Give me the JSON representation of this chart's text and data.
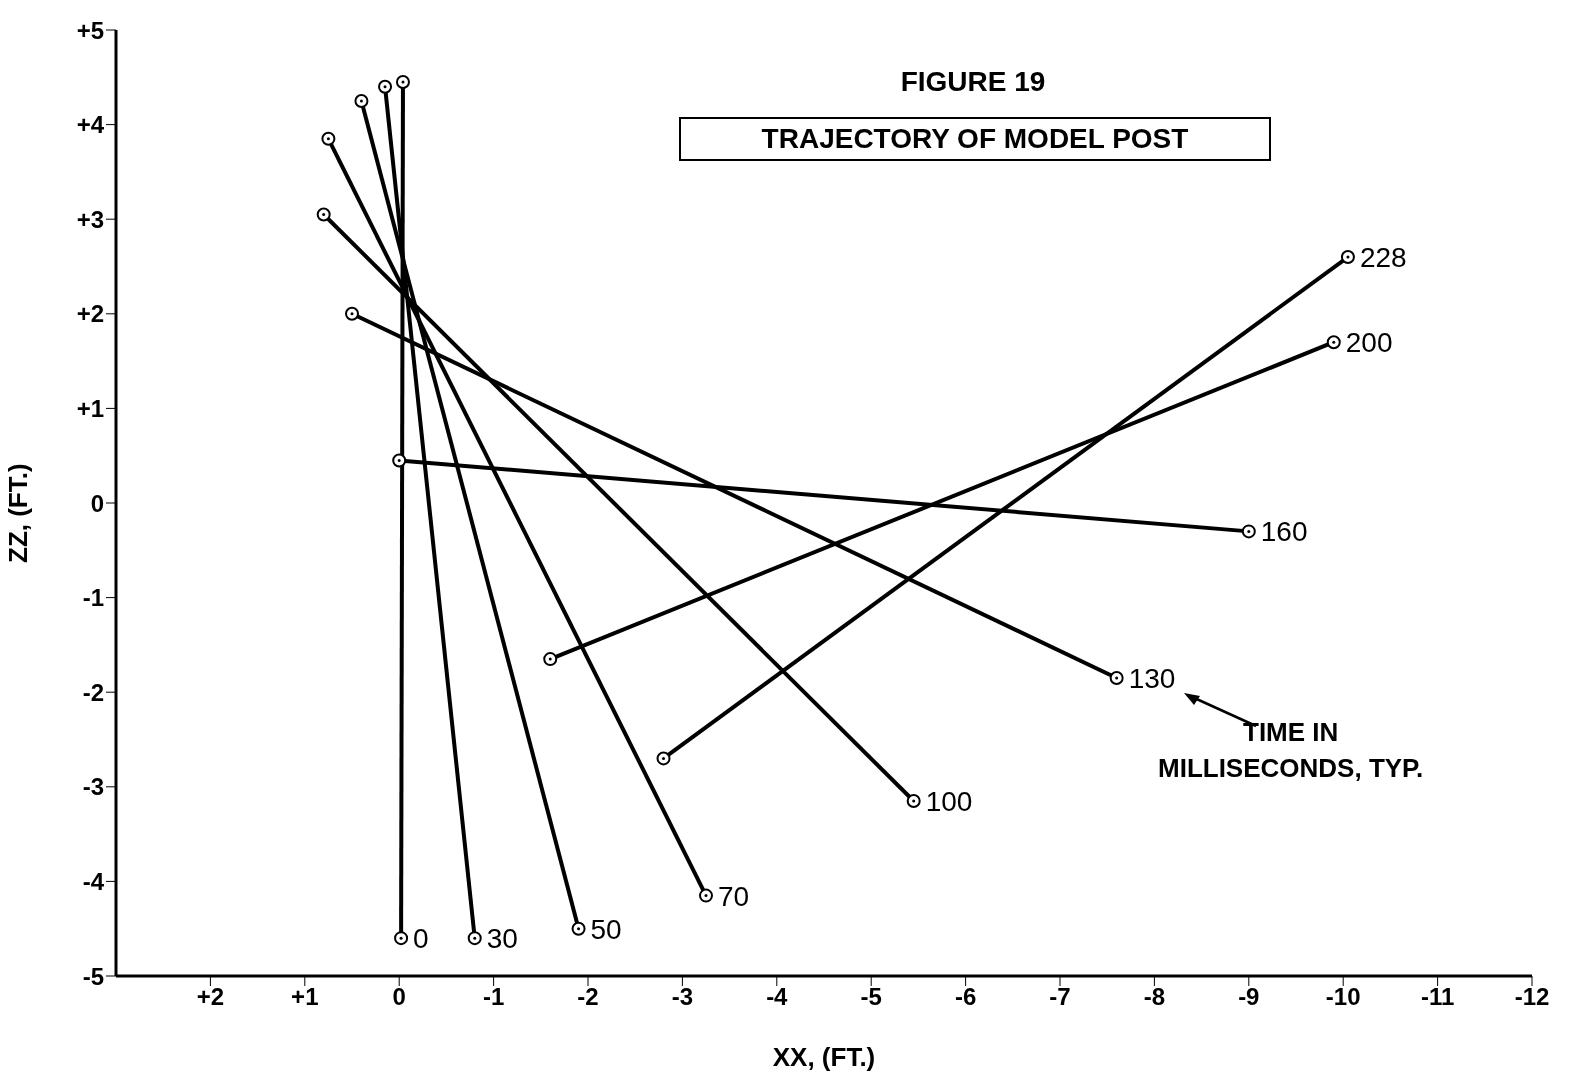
{
  "chart_data": {
    "type": "line",
    "title": "FIGURE 19",
    "subtitle": "TRAJECTORY OF MODEL POST",
    "xlabel": "XX,  (FT.)",
    "ylabel": "ZZ,  (FT.)",
    "xlim": [
      3,
      -12
    ],
    "xticks": [
      {
        "value": 2,
        "label": "+2"
      },
      {
        "value": 1,
        "label": "+1"
      },
      0,
      -1,
      -2,
      -3,
      -4,
      -5,
      -6,
      -7,
      -8,
      -9,
      -10,
      -11,
      -12
    ],
    "ylim": [
      -5,
      5
    ],
    "yticks": [
      -5,
      -4,
      -3,
      -2,
      -1,
      0,
      {
        "value": 1,
        "label": "+1"
      },
      {
        "value": 2,
        "label": "+2"
      },
      {
        "value": 3,
        "label": "+3"
      },
      {
        "value": 4,
        "label": "+4"
      },
      {
        "value": 5,
        "label": "+5"
      }
    ],
    "grid": false,
    "marker": "circle",
    "line_style": "solid",
    "annotations": [
      "TIME IN\nMILLISECONDS, TYP."
    ],
    "series": [
      {
        "name": "0",
        "color": "#000000",
        "x": [
          -0.02,
          -0.04
        ],
        "values": [
          -4.6,
          4.45
        ]
      },
      {
        "name": "30",
        "color": "#000000",
        "x": [
          -0.8,
          0.15
        ],
        "values": [
          -4.6,
          4.4
        ]
      },
      {
        "name": "50",
        "color": "#000000",
        "x": [
          -1.9,
          0.4
        ],
        "values": [
          -4.5,
          4.25
        ]
      },
      {
        "name": "70",
        "color": "#000000",
        "x": [
          -3.25,
          0.75
        ],
        "values": [
          -4.15,
          3.85
        ]
      },
      {
        "name": "100",
        "color": "#000000",
        "x": [
          -5.45,
          0.8
        ],
        "values": [
          -3.15,
          3.05
        ]
      },
      {
        "name": "130",
        "color": "#000000",
        "x": [
          -7.6,
          0.5
        ],
        "values": [
          -1.85,
          2
        ]
      },
      {
        "name": "160",
        "color": "#000000",
        "x": [
          -9,
          0
        ],
        "values": [
          -0.3,
          0.45
        ]
      },
      {
        "name": "200",
        "color": "#000000",
        "x": [
          -9.9,
          -1.6
        ],
        "values": [
          1.7,
          -1.65
        ]
      },
      {
        "name": "228",
        "color": "#000000",
        "x": [
          -10.05,
          -2.8
        ],
        "values": [
          2.6,
          -2.7
        ]
      }
    ]
  }
}
